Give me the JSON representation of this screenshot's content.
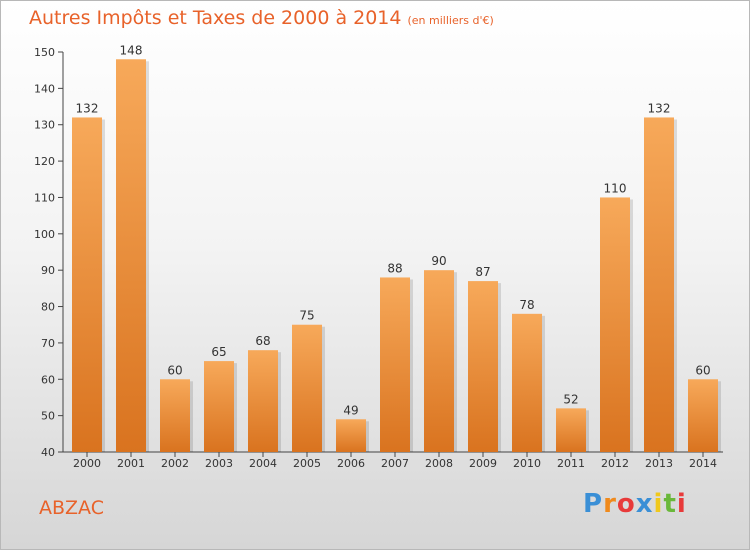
{
  "header": {
    "title": "Autres Impôts et Taxes de 2000 à 2014",
    "unit": "(en milliers d'€)"
  },
  "footer": {
    "place": "ABZAC",
    "brand_letters": [
      "P",
      "r",
      "o",
      "x",
      "i",
      "t",
      "i"
    ],
    "brand_colors": [
      "#3a8fd6",
      "#f08a1c",
      "#e83a3a",
      "#3a8fd6",
      "#f0c81c",
      "#6ab83a",
      "#e83a3a"
    ]
  },
  "colors": {
    "bar_light": "#f7a95a",
    "bar_dark": "#d9731f",
    "axis": "#444444",
    "text": "#333333"
  },
  "chart_data": {
    "type": "bar",
    "categories": [
      "2000",
      "2001",
      "2002",
      "2003",
      "2004",
      "2005",
      "2006",
      "2007",
      "2008",
      "2009",
      "2010",
      "2011",
      "2012",
      "2013",
      "2014"
    ],
    "values": [
      132,
      148,
      60,
      65,
      68,
      75,
      49,
      88,
      90,
      87,
      78,
      52,
      110,
      132,
      60
    ],
    "title": "Autres Impôts et Taxes de 2000 à 2014",
    "xlabel": "",
    "ylabel": "",
    "ylim": [
      40,
      150
    ],
    "yticks": [
      40,
      50,
      60,
      70,
      80,
      90,
      100,
      110,
      120,
      130,
      140,
      150
    ],
    "grid": false,
    "data_labels": true
  }
}
